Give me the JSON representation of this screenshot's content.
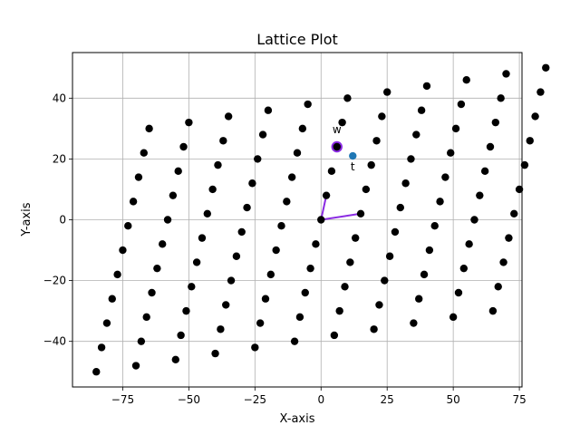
{
  "chart_data": {
    "type": "scatter",
    "title": "Lattice Plot",
    "xlabel": "X-axis",
    "ylabel": "Y-axis",
    "xlim": [
      -94,
      76
    ],
    "ylim": [
      -55,
      55
    ],
    "xticks": [
      -75,
      -50,
      -25,
      0,
      25,
      50,
      75
    ],
    "yticks": [
      -40,
      -20,
      0,
      20,
      40
    ],
    "xtick_labels": [
      "−75",
      "−50",
      "−25",
      "0",
      "25",
      "50",
      "75"
    ],
    "ytick_labels": [
      "−40",
      "−20",
      "0",
      "20",
      "40"
    ],
    "grid": true,
    "lattice": {
      "basis_a": [
        15,
        2
      ],
      "basis_b": [
        2,
        8
      ],
      "i_range": [
        -5,
        5
      ],
      "j_range": [
        -5,
        5
      ],
      "color": "#000000"
    },
    "basis_vectors": [
      {
        "from": [
          0,
          0
        ],
        "to": [
          15,
          2
        ]
      },
      {
        "from": [
          0,
          0
        ],
        "to": [
          2,
          8
        ]
      }
    ],
    "vector_color": "#8a2be2",
    "highlighted_point": {
      "label": "w",
      "x": 6,
      "y": 24,
      "fill": "#000000",
      "edge": "#8a2be2"
    },
    "target_point": {
      "label": "t",
      "x": 12,
      "y": 21,
      "color": "#1f77b4"
    }
  }
}
